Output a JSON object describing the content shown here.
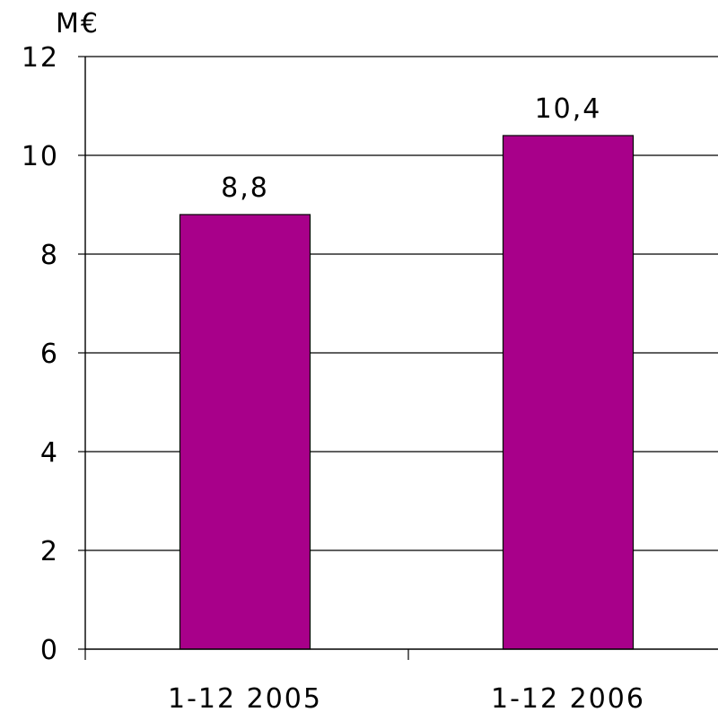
{
  "chart_data": {
    "type": "bar",
    "unit_label": "M€",
    "categories": [
      "1-12 2005",
      "1-12 2006"
    ],
    "values": [
      8.8,
      10.4
    ],
    "data_labels": [
      "8,8",
      "10,4"
    ],
    "ylim": [
      0,
      12
    ],
    "y_ticks": [
      0,
      2,
      4,
      6,
      8,
      10,
      12
    ],
    "y_tick_labels": [
      "0",
      "2",
      "4",
      "6",
      "8",
      "10",
      "12"
    ],
    "grid": true,
    "bar_color": "#a8008a",
    "bar_edge_color": "#000000",
    "title": "",
    "xlabel": "",
    "ylabel": ""
  }
}
